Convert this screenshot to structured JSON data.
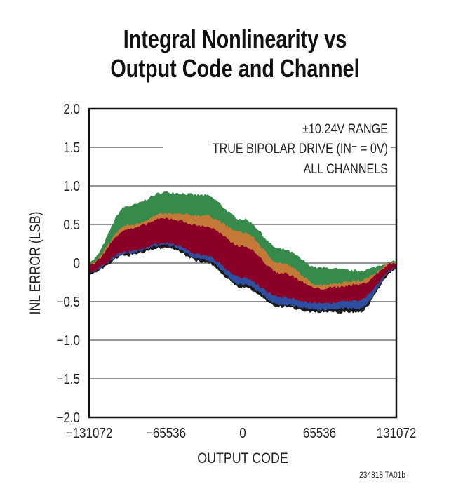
{
  "title_lines": [
    "Integral Nonlinearity vs",
    "Output Code and Channel"
  ],
  "footnote": "234818 TA01b",
  "chart_data": {
    "type": "area",
    "title": "Integral Nonlinearity vs Output Code and Channel",
    "xlabel": "OUTPUT CODE",
    "ylabel": "INL ERROR (LSB)",
    "xlim": [
      -131072,
      131072
    ],
    "ylim": [
      -2.0,
      2.0
    ],
    "x_ticks": [
      -131072,
      -65536,
      0,
      65536,
      131072
    ],
    "x_tick_labels": [
      "−131072",
      "−65536",
      "0",
      "65536",
      "131072"
    ],
    "y_ticks": [
      2.0,
      1.5,
      1.0,
      0.5,
      0,
      -0.5,
      -1.0,
      -1.5,
      -2.0
    ],
    "y_tick_labels": [
      "2.0",
      "1.5",
      "1.0",
      "0.5",
      "0",
      "−0.5",
      "−1.0",
      "−1.5",
      "−2.0"
    ],
    "grid": true,
    "annotations": [
      "±10.24V RANGE",
      "TRUE BIPOLAR DRIVE (IN⁻ = 0V)",
      "ALL CHANNELS"
    ],
    "x": [
      -131072,
      -98304,
      -65536,
      -32768,
      0,
      32768,
      65536,
      98304,
      131072
    ],
    "series": [
      {
        "name": "channel-green",
        "color": "#368a4c",
        "upper": [
          0.0,
          0.72,
          0.9,
          0.86,
          0.55,
          0.16,
          -0.08,
          -0.12,
          0.0
        ],
        "lower": [
          -0.05,
          0.4,
          0.55,
          0.45,
          0.2,
          -0.15,
          -0.35,
          -0.3,
          -0.02
        ]
      },
      {
        "name": "channel-orange",
        "color": "#c47a36",
        "upper": [
          -0.03,
          0.47,
          0.62,
          0.6,
          0.38,
          -0.02,
          -0.3,
          -0.25,
          0.0
        ],
        "lower": [
          -0.08,
          0.3,
          0.45,
          0.3,
          0.0,
          -0.3,
          -0.45,
          -0.4,
          -0.03
        ]
      },
      {
        "name": "channel-black",
        "color": "#1a1a1a",
        "upper": [
          -0.08,
          0.2,
          0.3,
          0.15,
          -0.15,
          -0.45,
          -0.52,
          -0.5,
          -0.05
        ],
        "lower": [
          -0.12,
          0.12,
          0.22,
          0.03,
          -0.3,
          -0.55,
          -0.62,
          -0.62,
          -0.07
        ]
      },
      {
        "name": "channel-blue",
        "color": "#2e4fa0",
        "upper": [
          -0.06,
          0.22,
          0.32,
          0.18,
          -0.12,
          -0.42,
          -0.5,
          -0.47,
          -0.04
        ],
        "lower": [
          -0.1,
          0.15,
          0.25,
          0.06,
          -0.26,
          -0.52,
          -0.58,
          -0.57,
          -0.06
        ]
      },
      {
        "name": "channel-red",
        "color": "#8b0026",
        "upper": [
          -0.04,
          0.42,
          0.56,
          0.46,
          0.2,
          -0.15,
          -0.35,
          -0.3,
          -0.01
        ],
        "lower": [
          -0.09,
          0.17,
          0.28,
          0.12,
          -0.18,
          -0.43,
          -0.5,
          -0.47,
          -0.05
        ]
      }
    ]
  }
}
